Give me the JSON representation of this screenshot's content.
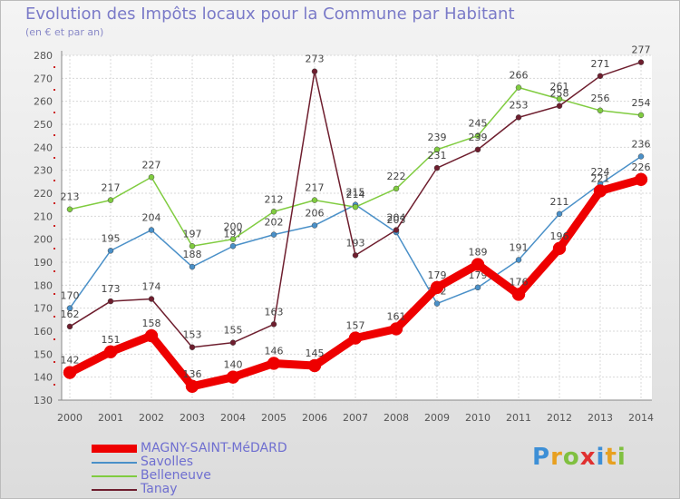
{
  "chart_data": {
    "type": "line",
    "title": "Evolution des Impôts locaux pour la Commune par Habitant",
    "subtitle": "(en € et par an)",
    "xlabel": "",
    "ylabel": "",
    "categories": [
      "2000",
      "2001",
      "2002",
      "2003",
      "2004",
      "2005",
      "2006",
      "2007",
      "2008",
      "2009",
      "2010",
      "2011",
      "2012",
      "2013",
      "2014"
    ],
    "ylim": [
      130,
      280
    ],
    "yticks": [
      130,
      140,
      150,
      160,
      170,
      180,
      190,
      200,
      210,
      220,
      230,
      240,
      250,
      260,
      270,
      280
    ],
    "grid": true,
    "legend_position": "bottom-left",
    "series": [
      {
        "name": "Savolles",
        "color": "#4a90c8",
        "values": [
          170,
          195,
          204,
          188,
          197,
          202,
          206,
          215,
          203,
          172,
          179,
          191,
          211,
          224,
          236
        ],
        "labels": [
          "170",
          "195",
          "204",
          "188",
          "197",
          "202",
          "206",
          "215",
          "203",
          "172",
          "179",
          "191",
          "211",
          "224",
          "236"
        ]
      },
      {
        "name": "Belleneuve",
        "color": "#80cc40",
        "values": [
          213,
          217,
          227,
          197,
          200,
          212,
          217,
          214,
          222,
          239,
          245,
          266,
          261,
          256,
          254
        ],
        "labels": [
          "213",
          "217",
          "227",
          "197",
          "200",
          "212",
          "217",
          "214",
          "222",
          "239",
          "245",
          "266",
          "261",
          "256",
          "254"
        ]
      },
      {
        "name": "Tanay",
        "color": "#6e1e2e",
        "values": [
          162,
          173,
          174,
          153,
          155,
          163,
          273,
          193,
          204,
          231,
          239,
          253,
          258,
          271,
          277
        ],
        "labels": [
          "162",
          "173",
          "174",
          "153",
          "155",
          "163",
          "273",
          "193",
          "204",
          "231",
          "239",
          "253",
          "258",
          "271",
          "277"
        ]
      },
      {
        "name": "MAGNY-SAINT-MéDARD",
        "color": "#ee0000",
        "values": [
          142,
          151,
          158,
          136,
          140,
          146,
          145,
          157,
          161,
          179,
          189,
          176,
          196,
          221,
          226
        ],
        "labels": [
          "142",
          "151",
          "158",
          "136",
          "140",
          "146",
          "145",
          "157",
          "161",
          "179",
          "189",
          "176",
          "196",
          "221",
          "226"
        ]
      }
    ],
    "legend_order": [
      "MAGNY-SAINT-MéDARD",
      "Savolles",
      "Belleneuve",
      "Tanay"
    ]
  },
  "logo": {
    "letters": [
      "P",
      "r",
      "o",
      "x",
      "i",
      "t",
      "i"
    ],
    "colors": [
      "#3d8fd6",
      "#e8a020",
      "#80c040",
      "#e03030",
      "#3d8fd6",
      "#e8a020",
      "#80c040"
    ]
  }
}
